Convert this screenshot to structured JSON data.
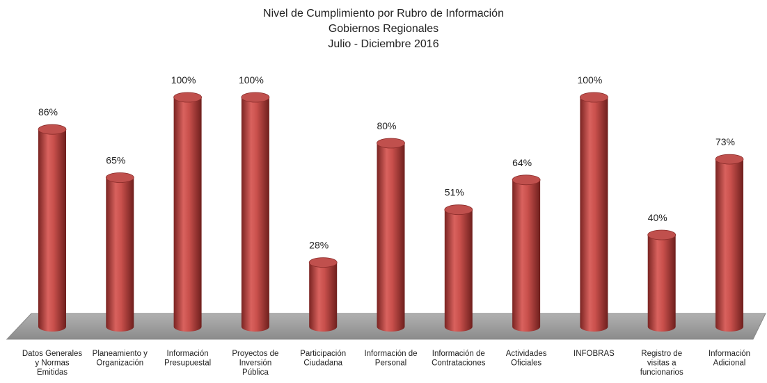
{
  "chart_data": {
    "type": "bar",
    "title": "Nivel de Cumplimiento por Rubro de Información",
    "subtitle": [
      "Gobiernos Regionales",
      "Julio - Diciembre 2016"
    ],
    "categories": [
      [
        "Datos Generales",
        "y Normas",
        "Emitidas"
      ],
      [
        "Planeamiento y",
        "Organización"
      ],
      [
        "Información",
        "Presupuestal"
      ],
      [
        "Proyectos de",
        "Inversión",
        "Pública"
      ],
      [
        "Participación",
        "Ciudadana"
      ],
      [
        "Información de",
        "Personal"
      ],
      [
        "Información de",
        "Contrataciones"
      ],
      [
        "Actividades",
        "Oficiales"
      ],
      [
        "INFOBRAS"
      ],
      [
        "Registro de",
        "visitas a",
        "funcionarios"
      ],
      [
        "Información",
        "Adicional"
      ]
    ],
    "values": [
      86,
      65,
      100,
      100,
      28,
      80,
      51,
      64,
      100,
      40,
      73
    ],
    "value_labels": [
      "86%",
      "65%",
      "100%",
      "100%",
      "28%",
      "80%",
      "51%",
      "64%",
      "100%",
      "40%",
      "73%"
    ],
    "color": "#c0504d"
  }
}
